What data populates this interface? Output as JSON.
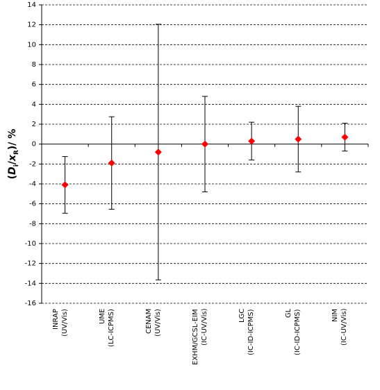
{
  "chart_data": {
    "type": "errorbar",
    "ylabel_parts": [
      "(",
      "D",
      "i",
      "/",
      "x",
      "R",
      ")/ %"
    ],
    "categories": [
      "INRAP\n(UV/Vis)",
      "UME\n(LC-ICPMS)",
      "CENAM\n(UV/Vis)",
      "EXHM/GCSL-EIM\n(IC-UV/Vis)",
      "LGC\n(IC-ID-ICPMS)",
      "GL\n(IC-ID-ICPMS)",
      "NIM\n(IC-UV/Vis)"
    ],
    "values": [
      -4.1,
      -1.9,
      -0.8,
      0.0,
      0.3,
      0.5,
      0.7
    ],
    "errors": [
      2.85,
      4.65,
      12.85,
      4.8,
      1.9,
      3.3,
      1.4
    ],
    "color": "#ff0000",
    "ylim": [
      -16,
      14
    ],
    "yticks": [
      -16,
      -14,
      -12,
      -10,
      -8,
      -6,
      -4,
      -2,
      0,
      2,
      4,
      6,
      8,
      10,
      12,
      14
    ],
    "grid": true
  }
}
